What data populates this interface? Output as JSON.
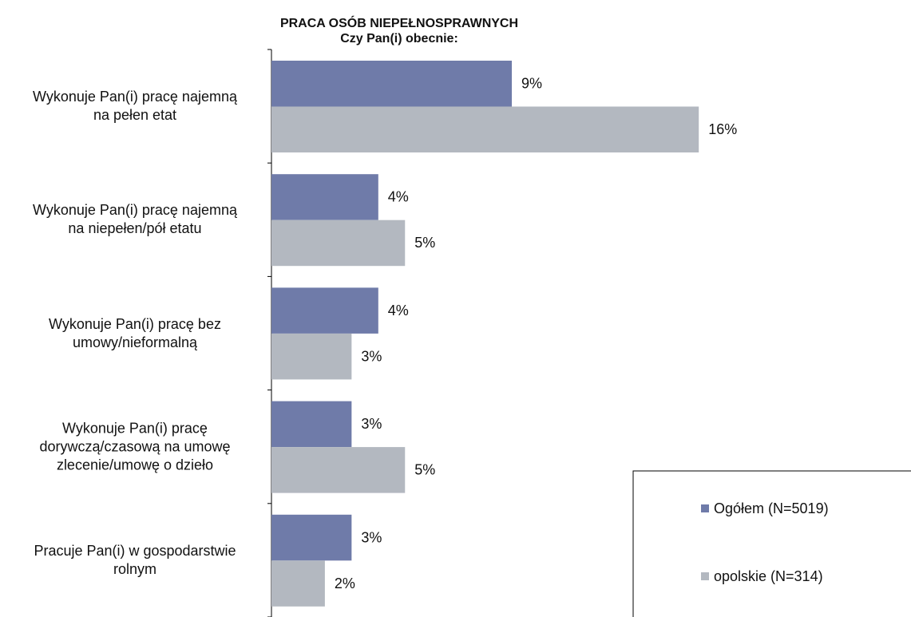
{
  "chart_data": {
    "type": "bar",
    "orientation": "horizontal",
    "title": "PRACA OSÓB NIEPEŁNOSPRAWNYCH",
    "subtitle": "Czy Pan(i) obecnie:",
    "categories": [
      "Wykonuje Pan(i) pracę najemną\nna pełen etat",
      "Wykonuje Pan(i) pracę najemną\nna niepełen/pół etatu",
      "Wykonuje Pan(i) pracę bez\numowy/nieformalną",
      "Wykonuje Pan(i) pracę\ndorywczą/czasową na umowę\nzlecenie/umowę o dzieło",
      "Pracuje Pan(i) w gospodarstwie\nrolnym"
    ],
    "series": [
      {
        "name": "Ogółem (N=5019)",
        "color": "#6f7ba9",
        "values": [
          9,
          4,
          4,
          3,
          3
        ],
        "value_labels": [
          "9%",
          "4%",
          "4%",
          "3%",
          "3%"
        ]
      },
      {
        "name": "opolskie (N=314)",
        "color": "#b3b8c0",
        "values": [
          16,
          5,
          3,
          5,
          2
        ],
        "value_labels": [
          "16%",
          "5%",
          "3%",
          "5%",
          "2%"
        ]
      }
    ],
    "legend": "bottom-right"
  }
}
